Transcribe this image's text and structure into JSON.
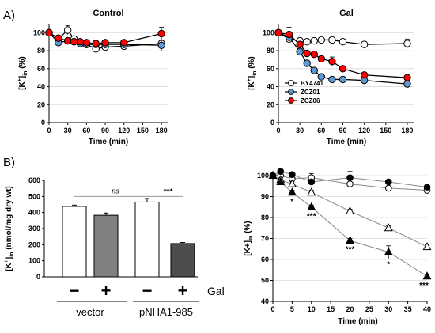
{
  "panel_labels": {
    "a": "A)",
    "b": "B)"
  },
  "chart_data": [
    {
      "id": "control",
      "type": "line",
      "title": "Control",
      "xlabel": "Time (min)",
      "ylabel_main": "[K",
      "ylabel_sup": "+",
      "ylabel_sub": "in",
      "ylabel_tail": " (%)",
      "xlim": [
        0,
        190
      ],
      "ylim": [
        0,
        110
      ],
      "xticks": [
        0,
        30,
        60,
        90,
        120,
        150,
        180
      ],
      "yticks": [
        0,
        20,
        40,
        60,
        80,
        100
      ],
      "series": [
        {
          "key": "bycon",
          "color": "#ffffff",
          "x": [
            0,
            15,
            30,
            40,
            50,
            60,
            75,
            90,
            120,
            180
          ],
          "y": [
            100,
            93,
            103,
            93,
            89,
            87,
            82,
            84,
            85,
            88
          ],
          "err": [
            2,
            3,
            5,
            3,
            2,
            2,
            2,
            2,
            3,
            3
          ]
        },
        {
          "key": "zcz01con",
          "color": "#5b9bd5",
          "x": [
            0,
            15,
            30,
            40,
            50,
            60,
            75,
            90,
            120,
            180
          ],
          "y": [
            100,
            89,
            91,
            90,
            88,
            87,
            87,
            87,
            87,
            86
          ],
          "err": [
            2,
            2,
            2,
            2,
            2,
            2,
            2,
            2,
            2,
            6
          ]
        },
        {
          "key": "zcz06con",
          "color": "#ff0000",
          "x": [
            0,
            15,
            30,
            40,
            50,
            60,
            75,
            90,
            120,
            180
          ],
          "y": [
            100,
            94,
            91,
            90,
            90,
            89,
            88,
            89,
            89,
            99
          ],
          "err": [
            2,
            2,
            2,
            2,
            2,
            2,
            2,
            2,
            2,
            7
          ]
        }
      ]
    },
    {
      "id": "gal",
      "type": "line",
      "title": "Gal",
      "xlabel": "Time (min)",
      "ylabel_main": "[K",
      "ylabel_sup": "+",
      "ylabel_sub": "in",
      "ylabel_tail": " (%)",
      "xlim": [
        0,
        190
      ],
      "ylim": [
        0,
        110
      ],
      "xticks": [
        0,
        30,
        60,
        90,
        120,
        150,
        180
      ],
      "yticks": [
        0,
        20,
        40,
        60,
        80,
        100
      ],
      "series": [
        {
          "name": "BY4741",
          "color": "#ffffff",
          "x": [
            0,
            15,
            30,
            40,
            50,
            60,
            75,
            90,
            120,
            180
          ],
          "y": [
            100,
            93,
            91,
            90,
            91,
            92,
            92,
            90,
            87,
            88
          ],
          "err": [
            2,
            3,
            3,
            2,
            2,
            2,
            2,
            2,
            3,
            5
          ]
        },
        {
          "name": "ZCZ01",
          "color": "#5b9bd5",
          "x": [
            0,
            15,
            30,
            40,
            50,
            60,
            75,
            90,
            120,
            180
          ],
          "y": [
            100,
            95,
            79,
            66,
            58,
            51,
            48,
            48,
            47,
            43
          ],
          "err": [
            2,
            5,
            3,
            2,
            2,
            2,
            2,
            2,
            2,
            2
          ]
        },
        {
          "name": "ZCZ06",
          "color": "#ff0000",
          "x": [
            0,
            15,
            30,
            40,
            50,
            60,
            75,
            90,
            120,
            180
          ],
          "y": [
            100,
            98,
            87,
            77,
            76,
            71,
            68,
            60,
            53,
            50
          ],
          "err": [
            2,
            8,
            3,
            2,
            2,
            3,
            5,
            2,
            2,
            2
          ]
        }
      ]
    },
    {
      "id": "bars",
      "type": "bar",
      "ylabel_main": "[K",
      "ylabel_sup": "+",
      "ylabel_sub": "in",
      "ylabel_tail": " (nmol/mg dry wt)",
      "ylim": [
        0,
        600
      ],
      "yticks": [
        0,
        100,
        200,
        300,
        400,
        500,
        600
      ],
      "values": [
        438,
        383,
        465,
        207
      ],
      "errors": [
        8,
        14,
        22,
        7
      ],
      "colors": [
        "#ffffff",
        "#808080",
        "#ffffff",
        "#4d4d4d"
      ],
      "signs": [
        "−",
        "+",
        "−",
        "+"
      ],
      "sign_label": "Gal",
      "groups": [
        "vector",
        "pNHA1-985"
      ],
      "significance": [
        "ns",
        "***"
      ]
    },
    {
      "id": "time",
      "type": "scatter",
      "xlabel": "Time (min)",
      "ylabel_main": "[K+]",
      "ylabel_sub": "in",
      "ylabel_tail": " (%)",
      "xlim": [
        0,
        40
      ],
      "ylim": [
        40,
        100
      ],
      "xticks": [
        0,
        5,
        10,
        15,
        20,
        25,
        30,
        35,
        40
      ],
      "yticks": [
        40,
        50,
        60,
        70,
        80,
        90,
        100
      ],
      "series": [
        {
          "key": "open-circle",
          "marker": "circle",
          "fill": "#ffffff",
          "x": [
            0,
            2,
            5,
            10,
            20,
            30,
            40
          ],
          "y": [
            100,
            100,
            98.5,
            99,
            96,
            94,
            93
          ],
          "err": [
            0.5,
            0.5,
            0.5,
            2,
            2,
            1,
            1
          ]
        },
        {
          "key": "filled-circle",
          "marker": "circle",
          "fill": "#000000",
          "x": [
            0,
            2,
            5,
            10,
            20,
            30,
            40
          ],
          "y": [
            100,
            102,
            100.5,
            97,
            99,
            97,
            94.5
          ],
          "err": [
            0.5,
            0.5,
            0.5,
            1,
            3,
            1,
            1
          ]
        },
        {
          "key": "open-triangle",
          "marker": "triangle",
          "fill": "#ffffff",
          "x": [
            0,
            2,
            5,
            10,
            20,
            30,
            40
          ],
          "y": [
            100,
            98,
            96,
            92,
            83,
            75,
            66
          ],
          "err": [
            0.5,
            0.5,
            1,
            1,
            1,
            1,
            1
          ]
        },
        {
          "key": "filled-triangle",
          "marker": "triangle",
          "fill": "#000000",
          "x": [
            0,
            2,
            5,
            10,
            20,
            30,
            40
          ],
          "y": [
            100,
            97,
            92,
            85,
            69,
            63.5,
            52
          ],
          "err": [
            0.5,
            1,
            1,
            1,
            1,
            3,
            1
          ]
        }
      ],
      "annotations": [
        {
          "x": 5,
          "y": 86.5,
          "text": "*"
        },
        {
          "x": 10,
          "y": 79.5,
          "text": "***"
        },
        {
          "x": 20,
          "y": 63.5,
          "text": "***"
        },
        {
          "x": 30,
          "y": 56.5,
          "text": "*"
        },
        {
          "x": 40,
          "y": 46.5,
          "text": "***"
        }
      ]
    }
  ]
}
